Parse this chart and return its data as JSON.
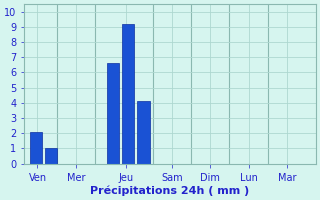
{
  "bar_data": [
    [
      0.05,
      2.1
    ],
    [
      0.45,
      1.0
    ],
    [
      2.05,
      6.6
    ],
    [
      2.45,
      9.2
    ],
    [
      2.85,
      4.1
    ]
  ],
  "bar_width": 0.32,
  "day_ticks": [
    0.25,
    1.25,
    2.55,
    3.75,
    4.75,
    5.75,
    6.75
  ],
  "day_labels": [
    "Ven",
    "Mer",
    "Jeu",
    "Sam",
    "Dim",
    "Lun",
    "Mar"
  ],
  "day_separators": [
    0.75,
    1.75,
    3.25,
    4.25,
    5.25,
    6.25
  ],
  "ylim": [
    0,
    10.5
  ],
  "xlim": [
    -0.1,
    7.5
  ],
  "yticks": [
    0,
    1,
    2,
    3,
    4,
    5,
    6,
    7,
    8,
    9,
    10
  ],
  "bar_color": "#1a52d4",
  "bar_edge_color": "#0d2fa0",
  "background_color": "#d6f5ef",
  "grid_color": "#aed8d0",
  "sep_color": "#8ab8b0",
  "xlabel": "Précipitations 24h ( mm )",
  "xlabel_color": "#2222cc",
  "tick_color": "#2222cc",
  "xlabel_fontsize": 8,
  "ytick_fontsize": 7,
  "xtick_fontsize": 7
}
